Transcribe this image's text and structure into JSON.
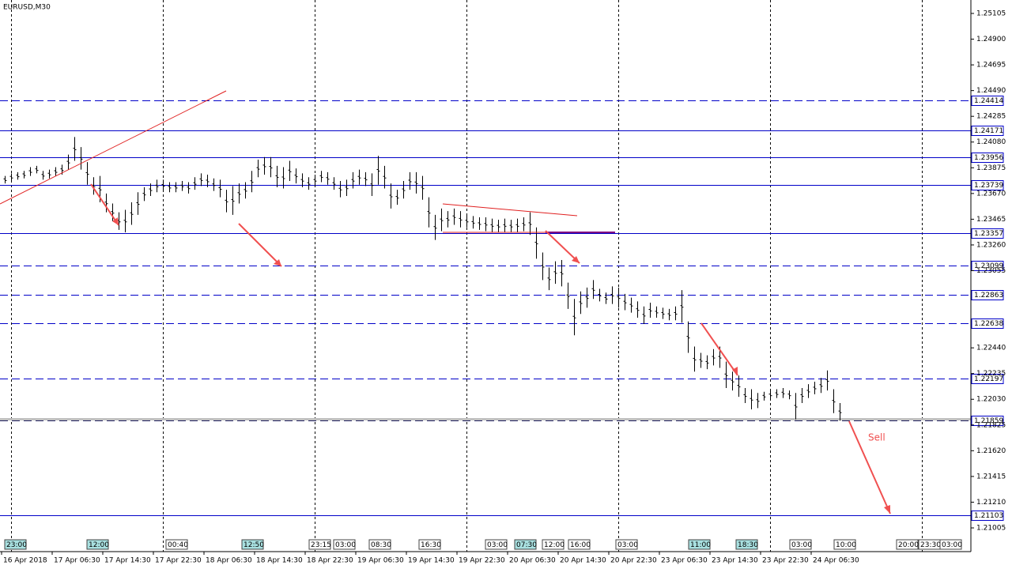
{
  "chart_data": {
    "type": "ohlc",
    "title": "EURUSD,M30",
    "ylim": [
      1.20816,
      1.25212
    ],
    "yticks": [
      {
        "value": 1.25105,
        "label": "1.25105"
      },
      {
        "value": 1.249,
        "label": "1.24900"
      },
      {
        "value": 1.24695,
        "label": "1.24695"
      },
      {
        "value": 1.2449,
        "label": "1.24490"
      },
      {
        "value": 1.24285,
        "label": "1.24285"
      },
      {
        "value": 1.2408,
        "label": "1.24080"
      },
      {
        "value": 1.23875,
        "label": "1.23875"
      },
      {
        "value": 1.2367,
        "label": "1.23670"
      },
      {
        "value": 1.23465,
        "label": "1.23465"
      },
      {
        "value": 1.2326,
        "label": "1.23260"
      },
      {
        "value": 1.23055,
        "label": "1.23055"
      },
      {
        "value": 1.2244,
        "label": "1.22440"
      },
      {
        "value": 1.22235,
        "label": "1.22235"
      },
      {
        "value": 1.2203,
        "label": "1.22030"
      },
      {
        "value": 1.21825,
        "label": "1.21825"
      },
      {
        "value": 1.2162,
        "label": "1.21620"
      },
      {
        "value": 1.21415,
        "label": "1.21415"
      },
      {
        "value": 1.2121,
        "label": "1.21210"
      },
      {
        "value": 1.21005,
        "label": "1.21005"
      }
    ],
    "xticks": [
      {
        "value": 0,
        "label": "16 Apr 2018"
      },
      {
        "value": 8,
        "label": "17 Apr 06:30"
      },
      {
        "value": 16,
        "label": "17 Apr 14:30"
      },
      {
        "value": 24,
        "label": "17 Apr 22:30"
      },
      {
        "value": 32,
        "label": "18 Apr 06:30"
      },
      {
        "value": 40,
        "label": "18 Apr 14:30"
      },
      {
        "value": 48,
        "label": "18 Apr 22:30"
      },
      {
        "value": 56,
        "label": "19 Apr 06:30"
      },
      {
        "value": 64,
        "label": "19 Apr 14:30"
      },
      {
        "value": 72,
        "label": "19 Apr 22:30"
      },
      {
        "value": 80,
        "label": "20 Apr 06:30"
      },
      {
        "value": 88,
        "label": "20 Apr 14:30"
      },
      {
        "value": 96,
        "label": "20 Apr 22:30"
      },
      {
        "value": 104,
        "label": "23 Apr 06:30"
      },
      {
        "value": 112,
        "label": "23 Apr 14:30"
      },
      {
        "value": 120,
        "label": "23 Apr 22:30"
      },
      {
        "value": 128,
        "label": "24 Apr 06:30"
      }
    ],
    "xgrid": [
      1.5,
      25.5,
      49.5,
      73.5,
      97.5,
      121.5,
      145.5
    ],
    "color": "#000000",
    "high": [
      1.2381,
      1.2383,
      1.2384,
      1.2385,
      1.2388,
      1.2389,
      1.2385,
      1.2386,
      1.2388,
      1.239,
      1.2398,
      1.2412,
      1.2404,
      1.2392,
      1.238,
      1.2381,
      1.2367,
      1.2359,
      1.2352,
      1.2354,
      1.236,
      1.2368,
      1.2372,
      1.2375,
      1.2378,
      1.2378,
      1.2376,
      1.2376,
      1.2377,
      1.2376,
      1.238,
      1.2383,
      1.2382,
      1.2379,
      1.2378,
      1.237,
      1.2373,
      1.2375,
      1.2376,
      1.2385,
      1.2394,
      1.2396,
      1.2396,
      1.2389,
      1.2388,
      1.2393,
      1.2387,
      1.2383,
      1.238,
      1.2382,
      1.2385,
      1.2384,
      1.238,
      1.2377,
      1.2378,
      1.2384,
      1.2386,
      1.2384,
      1.2383,
      1.2397,
      1.2389,
      1.2375,
      1.237,
      1.2377,
      1.2384,
      1.2384,
      1.2381,
      1.2364,
      1.235,
      1.2355,
      1.2353,
      1.2355,
      1.2353,
      1.235,
      1.2349,
      1.2348,
      1.2348,
      1.2347,
      1.2346,
      1.2347,
      1.2346,
      1.2347,
      1.2348,
      1.2352,
      1.234,
      1.232,
      1.2308,
      1.2313,
      1.2314,
      1.2296,
      1.2283,
      1.2289,
      1.2292,
      1.2298,
      1.2291,
      1.2288,
      1.2293,
      1.2292,
      1.2287,
      1.2284,
      1.2281,
      1.2277,
      1.228,
      1.2277,
      1.2276,
      1.2275,
      1.2277,
      1.229,
      1.2265,
      1.2245,
      1.224,
      1.2238,
      1.2243,
      1.2245,
      1.2233,
      1.2225,
      1.2222,
      1.2212,
      1.2211,
      1.2208,
      1.2209,
      1.221,
      1.2211,
      1.2212,
      1.221,
      1.2208,
      1.2212,
      1.2215,
      1.2217,
      1.222,
      1.2226,
      1.2211,
      1.22
    ],
    "low": [
      1.2375,
      1.2377,
      1.2378,
      1.2379,
      1.2381,
      1.2383,
      1.2378,
      1.2379,
      1.2381,
      1.2382,
      1.2386,
      1.2393,
      1.2386,
      1.2374,
      1.2366,
      1.236,
      1.2352,
      1.2345,
      1.2338,
      1.2336,
      1.2342,
      1.235,
      1.2361,
      1.2365,
      1.2368,
      1.2369,
      1.2368,
      1.2368,
      1.2369,
      1.2367,
      1.237,
      1.2373,
      1.2372,
      1.2369,
      1.2364,
      1.2352,
      1.235,
      1.2359,
      1.2363,
      1.2368,
      1.238,
      1.2382,
      1.238,
      1.2372,
      1.2371,
      1.2377,
      1.2375,
      1.2372,
      1.237,
      1.2373,
      1.2376,
      1.2374,
      1.237,
      1.2364,
      1.2365,
      1.2371,
      1.2374,
      1.2373,
      1.2365,
      1.2374,
      1.2371,
      1.2355,
      1.2358,
      1.2363,
      1.237,
      1.2367,
      1.2362,
      1.234,
      1.233,
      1.2337,
      1.234,
      1.2342,
      1.234,
      1.234,
      1.2339,
      1.2338,
      1.2337,
      1.2336,
      1.2336,
      1.2336,
      1.2336,
      1.2336,
      1.2337,
      1.2334,
      1.2315,
      1.2298,
      1.229,
      1.2295,
      1.2293,
      1.2275,
      1.2254,
      1.2271,
      1.2276,
      1.2283,
      1.2281,
      1.2279,
      1.2279,
      1.2276,
      1.2274,
      1.2272,
      1.2268,
      1.2263,
      1.2268,
      1.2268,
      1.2267,
      1.2266,
      1.2266,
      1.2264,
      1.224,
      1.2225,
      1.2228,
      1.2227,
      1.223,
      1.2228,
      1.2212,
      1.221,
      1.2205,
      1.22,
      1.2195,
      1.2196,
      1.2202,
      1.2203,
      1.2204,
      1.2204,
      1.2203,
      1.2187,
      1.22,
      1.2204,
      1.2207,
      1.2208,
      1.221,
      1.2192,
      1.2186
    ],
    "levels": [
      {
        "value": 1.24414,
        "label": "1.24414",
        "style": "dashed"
      },
      {
        "value": 1.24171,
        "label": "1.24171",
        "style": "solid"
      },
      {
        "value": 1.23956,
        "label": "1.23956",
        "style": "solid"
      },
      {
        "value": 1.23739,
        "label": "1.23739",
        "style": "solid"
      },
      {
        "value": 1.23357,
        "label": "1.23357",
        "style": "solid"
      },
      {
        "value": 1.23099,
        "label": "1.23099",
        "style": "dashed"
      },
      {
        "value": 1.22863,
        "label": "1.22863",
        "style": "dashed"
      },
      {
        "value": 1.22638,
        "label": "1.22638",
        "style": "dashed"
      },
      {
        "value": 1.22197,
        "label": "1.22197",
        "style": "dashed"
      },
      {
        "value": 1.21859,
        "label": "1.21859",
        "style": "current"
      },
      {
        "value": 1.21103,
        "label": "1.21103",
        "style": "solid"
      }
    ],
    "annotation": "Sell",
    "sessions": [
      "23:00",
      "12:00",
      "00:40",
      "12:50",
      "23:15",
      "03:00",
      "08:30",
      "16:30",
      "03:00",
      "07:30",
      "12:00",
      "16:00",
      "03:00",
      "11:00",
      "18:30",
      "03:00",
      "10:00",
      "20:00",
      "23:30",
      "03:00"
    ]
  }
}
